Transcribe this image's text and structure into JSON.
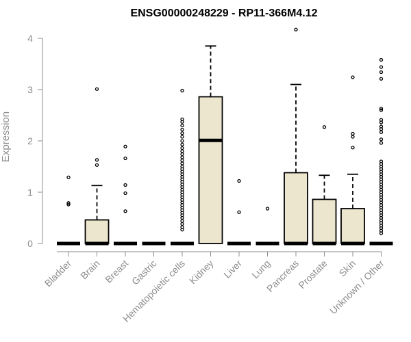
{
  "chart_data": {
    "type": "box",
    "title": "ENSG00000248229 - RP11-366M4.12",
    "xlabel": "",
    "ylabel": "Expression",
    "ylim": [
      0,
      4.2
    ],
    "yticks": [
      0,
      1,
      2,
      3,
      4
    ],
    "categories": [
      "Bladder",
      "Brain",
      "Breast",
      "Gastric",
      "Hematopoietic cells",
      "Kidney",
      "Liver",
      "Lung",
      "Pancreas",
      "Prostate",
      "Skin",
      "Unknown / Other"
    ],
    "boxes": [
      {
        "category": "Bladder",
        "q1": 0,
        "median": 0,
        "q3": 0,
        "whisker_low": 0,
        "whisker_high": 0,
        "outliers": [
          1.29,
          0.79,
          0.76
        ]
      },
      {
        "category": "Brain",
        "q1": 0,
        "median": 0,
        "q3": 0.46,
        "whisker_low": 0,
        "whisker_high": 1.13,
        "outliers": [
          3.01,
          1.63,
          1.53
        ]
      },
      {
        "category": "Breast",
        "q1": 0,
        "median": 0,
        "q3": 0,
        "whisker_low": 0,
        "whisker_high": 0,
        "outliers": [
          1.89,
          1.66,
          1.14,
          0.98,
          0.63
        ]
      },
      {
        "category": "Gastric",
        "q1": 0,
        "median": 0,
        "q3": 0,
        "whisker_low": 0,
        "whisker_high": 0,
        "outliers": []
      },
      {
        "category": "Hematopoietic cells",
        "q1": 0,
        "median": 0,
        "q3": 0,
        "whisker_low": 0,
        "whisker_high": 0,
        "outliers": [
          2.98,
          2.42,
          2.37,
          2.3,
          2.22,
          2.15,
          2.08,
          2.0,
          1.93,
          1.86,
          1.8,
          1.74,
          1.68,
          1.62,
          1.56,
          1.5,
          1.45,
          1.4,
          1.35,
          1.3,
          1.25,
          1.2,
          1.15,
          1.1,
          1.05,
          1.0,
          0.95,
          0.9,
          0.85,
          0.8,
          0.75,
          0.7,
          0.65,
          0.6,
          0.55,
          0.5,
          0.44,
          0.38,
          0.32,
          0.27
        ]
      },
      {
        "category": "Kidney",
        "q1": 0,
        "median": 2.01,
        "q3": 2.86,
        "whisker_low": 0,
        "whisker_high": 3.85,
        "outliers": []
      },
      {
        "category": "Liver",
        "q1": 0,
        "median": 0,
        "q3": 0,
        "whisker_low": 0,
        "whisker_high": 0,
        "outliers": [
          1.22,
          0.61
        ]
      },
      {
        "category": "Lung",
        "q1": 0,
        "median": 0,
        "q3": 0,
        "whisker_low": 0,
        "whisker_high": 0,
        "outliers": [
          0.68
        ]
      },
      {
        "category": "Pancreas",
        "q1": 0,
        "median": 0,
        "q3": 1.38,
        "whisker_low": 0,
        "whisker_high": 3.1,
        "outliers": [
          4.17
        ]
      },
      {
        "category": "Prostate",
        "q1": 0,
        "median": 0,
        "q3": 0.86,
        "whisker_low": 0,
        "whisker_high": 1.33,
        "outliers": [
          2.27
        ]
      },
      {
        "category": "Skin",
        "q1": 0,
        "median": 0,
        "q3": 0.68,
        "whisker_low": 0,
        "whisker_high": 1.35,
        "outliers": [
          3.24,
          2.14,
          2.08,
          1.87
        ]
      },
      {
        "category": "Unknown / Other",
        "q1": 0,
        "median": 0,
        "q3": 0,
        "whisker_low": 0,
        "whisker_high": 0,
        "outliers": [
          3.58,
          3.44,
          3.34,
          3.21,
          2.63,
          2.6,
          2.41,
          2.36,
          2.28,
          2.23,
          2.17,
          2.03,
          1.96,
          1.6,
          1.55,
          1.5,
          1.45,
          1.4,
          1.35,
          1.3,
          1.25,
          1.2,
          1.15,
          1.1,
          1.05,
          1.0,
          0.95,
          0.9,
          0.85,
          0.8,
          0.75,
          0.7,
          0.65,
          0.6,
          0.55,
          0.5,
          0.45,
          0.4,
          0.35,
          0.3,
          0.25,
          0.2
        ]
      }
    ]
  }
}
